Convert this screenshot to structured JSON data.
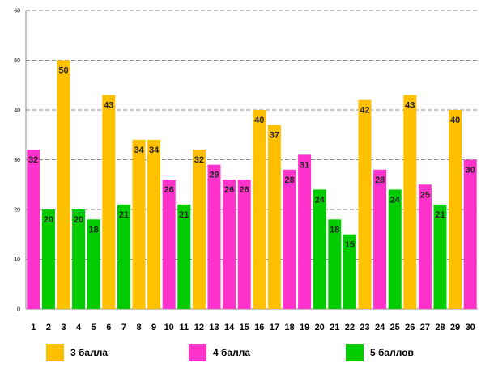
{
  "chart_data": {
    "type": "bar",
    "categories": [
      "1",
      "2",
      "3",
      "4",
      "5",
      "6",
      "7",
      "8",
      "9",
      "10",
      "11",
      "12",
      "13",
      "14",
      "15",
      "16",
      "17",
      "18",
      "19",
      "20",
      "21",
      "22",
      "23",
      "24",
      "25",
      "26",
      "27",
      "28",
      "29",
      "30"
    ],
    "values": [
      32,
      20,
      50,
      20,
      18,
      43,
      21,
      34,
      34,
      26,
      21,
      32,
      29,
      26,
      26,
      40,
      37,
      28,
      31,
      24,
      18,
      15,
      42,
      28,
      24,
      43,
      25,
      21,
      40,
      30
    ],
    "groups": [
      1,
      2,
      0,
      2,
      2,
      0,
      2,
      0,
      0,
      1,
      2,
      0,
      1,
      1,
      1,
      0,
      0,
      1,
      1,
      2,
      2,
      2,
      0,
      1,
      2,
      0,
      1,
      2,
      0,
      1
    ],
    "ylim": [
      0,
      60
    ],
    "yticks": [
      0,
      10,
      20,
      30,
      40,
      50,
      60
    ],
    "grid": true,
    "legend_position": "bottom",
    "series": [
      {
        "name": "3 балла",
        "color": "#FFC000"
      },
      {
        "name": "4 балла",
        "color": "#FF33CC"
      },
      {
        "name": "5 баллов",
        "color": "#00CC00"
      }
    ]
  }
}
